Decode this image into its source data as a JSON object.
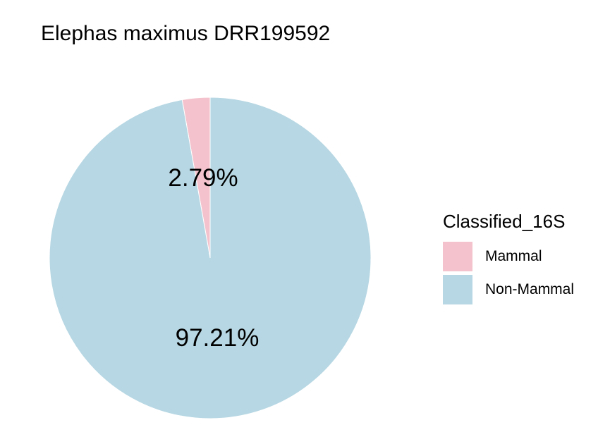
{
  "chart_data": {
    "type": "pie",
    "title": "Elephas maximus DRR199592",
    "legend_title": "Classified_16S",
    "legend_position": "right",
    "slices": [
      {
        "name": "Mammal",
        "value": 2.79,
        "label": "2.79%",
        "color": "#F4C2CC"
      },
      {
        "name": "Non-Mammal",
        "value": 97.21,
        "label": "97.21%",
        "color": "#B6D7E3"
      }
    ],
    "start_angle": "12 o'clock",
    "direction": "counterclockwise"
  }
}
